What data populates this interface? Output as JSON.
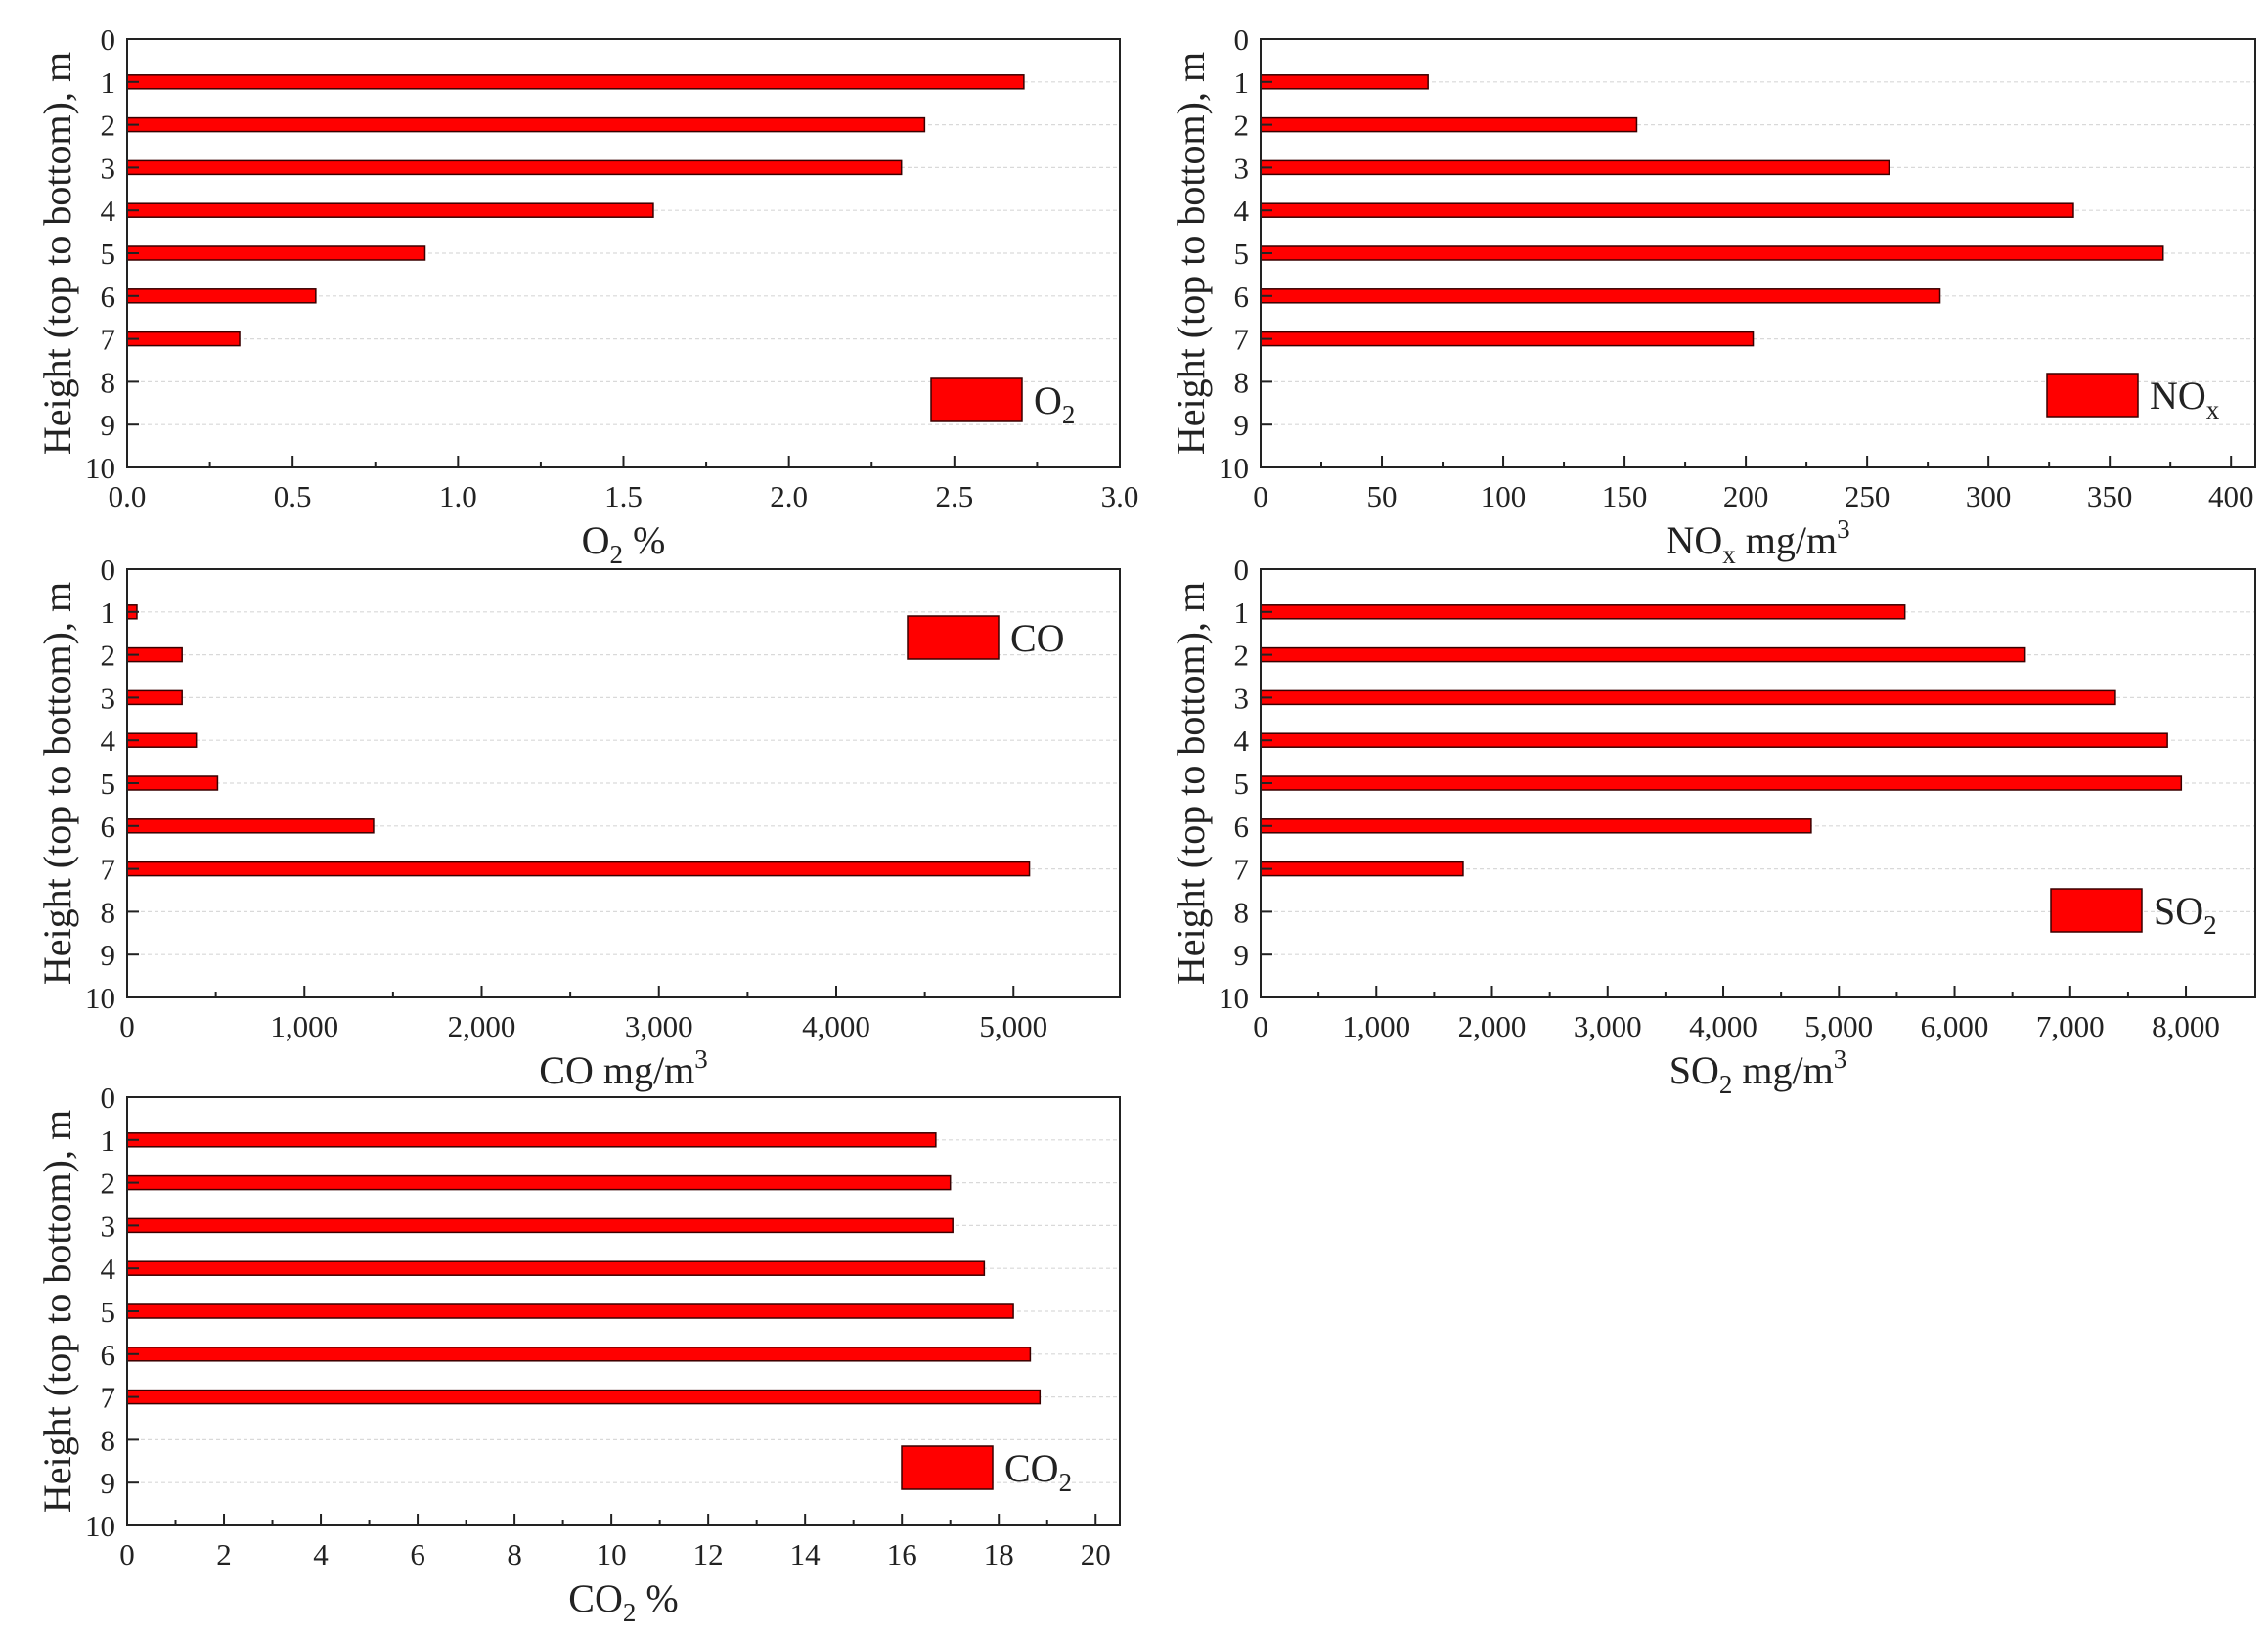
{
  "colors": {
    "bar_fill": "#ff0000",
    "bar_stroke": "#3a0000",
    "axis": "#222222",
    "grid": "#d9d9d9"
  },
  "y_axis": {
    "title": "Height (top to bottom), m",
    "ticks": [
      "0",
      "1",
      "2",
      "3",
      "4",
      "5",
      "6",
      "7",
      "8",
      "9",
      "10"
    ],
    "range": [
      0,
      10
    ]
  },
  "chart_data": [
    {
      "type": "bar",
      "orientation": "horizontal",
      "title": "",
      "xlabel_main": "O",
      "xlabel_sub": "2",
      "xlabel_sup": "",
      "xlabel_rest": " %",
      "ylabel": "Height (top to bottom), m",
      "legend_label": "O",
      "legend_sub": "2",
      "legend_position": "bottom-right",
      "categories": [
        1,
        2,
        3,
        4,
        5,
        6,
        7
      ],
      "values": [
        2.71,
        2.41,
        2.34,
        1.59,
        0.9,
        0.57,
        0.34
      ],
      "xlim": [
        0,
        3.0
      ],
      "xticks": [
        0.0,
        0.5,
        1.0,
        1.5,
        2.0,
        2.5,
        3.0
      ],
      "xtick_labels": [
        "0.0",
        "0.5",
        "1.0",
        "1.5",
        "2.0",
        "2.5",
        "3.0"
      ]
    },
    {
      "type": "bar",
      "orientation": "horizontal",
      "title": "",
      "xlabel_main": "NO",
      "xlabel_sub": "x",
      "xlabel_sup": "",
      "xlabel_rest": " mg/m",
      "xlabel_rest_sup": "3",
      "ylabel": "Height (top to bottom), m",
      "legend_label": "NO",
      "legend_sub": "x",
      "legend_position": "top-right",
      "categories": [
        1,
        2,
        3,
        4,
        5,
        6,
        7
      ],
      "values": [
        69,
        155,
        259,
        335,
        372,
        280,
        203
      ],
      "xlim": [
        0,
        410
      ],
      "xticks": [
        0,
        50,
        100,
        150,
        200,
        250,
        300,
        350,
        400
      ],
      "xtick_labels": [
        "0",
        "50",
        "100",
        "150",
        "200",
        "250",
        "300",
        "350",
        "400"
      ]
    },
    {
      "type": "bar",
      "orientation": "horizontal",
      "title": "",
      "xlabel_main": "CO mg/m",
      "xlabel_sub": "",
      "xlabel_sup": "3",
      "xlabel_rest": "",
      "ylabel": "Height (top to bottom), m",
      "legend_label": "CO",
      "legend_sub": "",
      "legend_position": "top-right",
      "categories": [
        1,
        2,
        3,
        4,
        5,
        6,
        7
      ],
      "values": [
        55,
        310,
        310,
        390,
        510,
        1390,
        5090
      ],
      "xlim": [
        0,
        5600
      ],
      "xticks": [
        0,
        1000,
        2000,
        3000,
        4000,
        5000
      ],
      "xtick_labels": [
        "0",
        "1,000",
        "2,000",
        "3,000",
        "4,000",
        "5,000"
      ]
    },
    {
      "type": "bar",
      "orientation": "horizontal",
      "title": "",
      "xlabel_main": "SO",
      "xlabel_sub": "2",
      "xlabel_sup": "",
      "xlabel_rest": " mg/m",
      "xlabel_rest_sup": "3",
      "ylabel": "Height (top to bottom), m",
      "legend_label": "SO",
      "legend_sub": "2",
      "legend_position": "bottom-right",
      "categories": [
        1,
        2,
        3,
        4,
        5,
        6,
        7
      ],
      "values": [
        5570,
        6610,
        7390,
        7840,
        7960,
        4760,
        1750
      ],
      "xlim": [
        0,
        8600
      ],
      "xticks": [
        0,
        1000,
        2000,
        3000,
        4000,
        5000,
        6000,
        7000,
        8000
      ],
      "xtick_labels": [
        "0",
        "1,000",
        "2,000",
        "3,000",
        "4,000",
        "5,000",
        "6,000",
        "7,000",
        "8,000"
      ]
    },
    {
      "type": "bar",
      "orientation": "horizontal",
      "title": "",
      "xlabel_main": "CO",
      "xlabel_sub": "2",
      "xlabel_sup": "",
      "xlabel_rest": " %",
      "ylabel": "Height (top to bottom), m",
      "legend_label": "CO",
      "legend_sub": "2",
      "legend_position": "bottom-right",
      "categories": [
        1,
        2,
        3,
        4,
        5,
        6,
        7
      ],
      "values": [
        16.7,
        17.0,
        17.05,
        17.7,
        18.3,
        18.65,
        18.85
      ],
      "xlim": [
        0,
        20.5
      ],
      "xticks": [
        0,
        2,
        4,
        6,
        8,
        10,
        12,
        14,
        16,
        18,
        20
      ],
      "xtick_labels": [
        "0",
        "2",
        "4",
        "6",
        "8",
        "10",
        "12",
        "14",
        "16",
        "18",
        "20"
      ]
    }
  ]
}
